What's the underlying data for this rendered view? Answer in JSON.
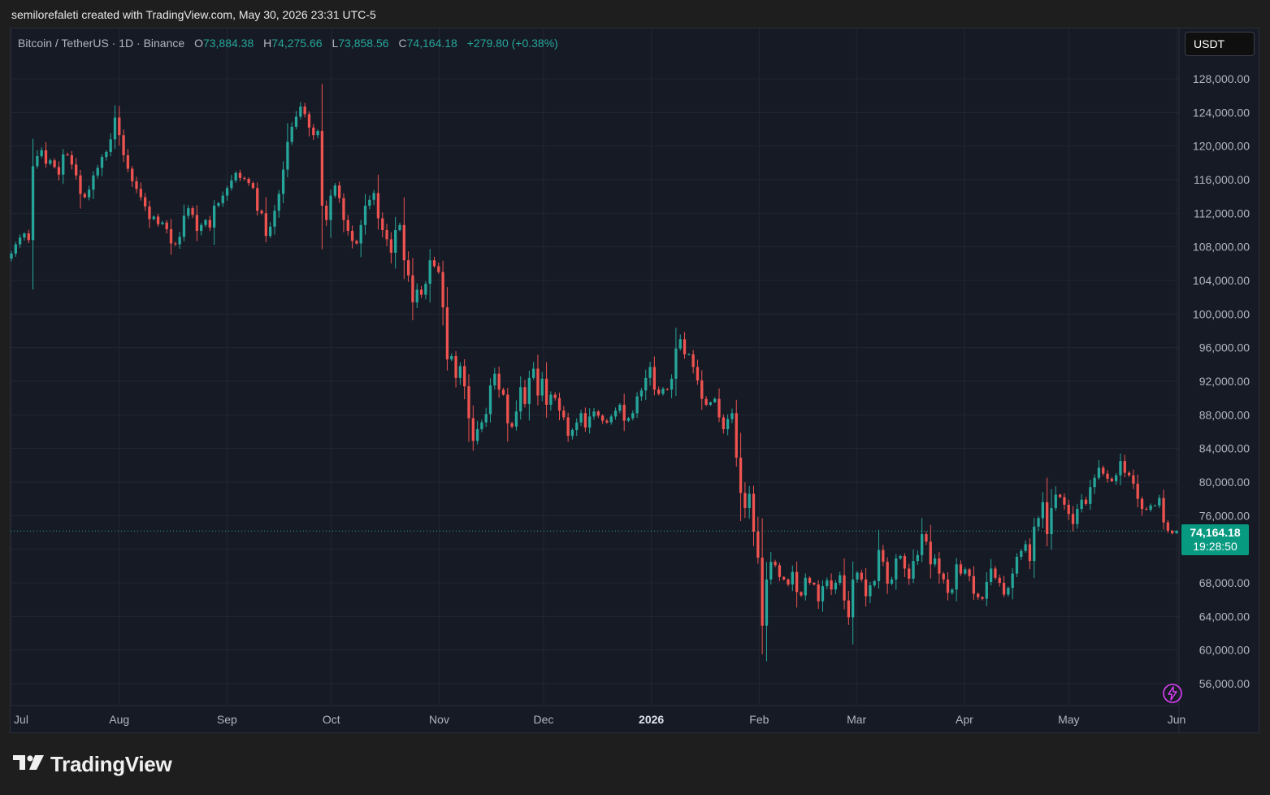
{
  "caption": "semilorefaleti created with TradingView.com, May 30, 2026 23:31 UTC-5",
  "legend": {
    "symbol": "Bitcoin / TetherUS · 1D · Binance",
    "open_label": "O",
    "open": "73,884.38",
    "high_label": "H",
    "high": "74,275.66",
    "low_label": "L",
    "low": "73,858.56",
    "close_label": "C",
    "close": "74,164.18",
    "change": "+279.80 (+0.38%)"
  },
  "currency": "USDT",
  "price_tag": {
    "price": "74,164.18",
    "countdown": "19:28:50"
  },
  "logo_text": "TradingView",
  "colors": {
    "up": "#26a69a",
    "down": "#ef5350",
    "background": "#161a25",
    "grid": "#232734",
    "axis_text": "#b2b5be",
    "price_tag": "#089981"
  },
  "icons": {
    "logo": "tradingview-logo-icon",
    "indicator": "lightning-icon"
  },
  "chart_data": {
    "type": "candlestick",
    "ylim": [
      52000,
      130000
    ],
    "y_ticks": [
      "128,000.00",
      "124,000.00",
      "120,000.00",
      "116,000.00",
      "112,000.00",
      "108,000.00",
      "104,000.00",
      "100,000.00",
      "96,000.00",
      "92,000.00",
      "88,000.00",
      "84,000.00",
      "80,000.00",
      "76,000.00",
      "68,000.00",
      "64,000.00",
      "60,000.00",
      "56,000.00"
    ],
    "x_ticks": [
      "Jul",
      "Aug",
      "Sep",
      "Oct",
      "Nov",
      "Dec",
      "2026",
      "Feb",
      "Mar",
      "Apr",
      "May",
      "Jun"
    ],
    "last_price": 74164.18,
    "grid": true,
    "series_close": [
      107200,
      108300,
      109100,
      109600,
      108800,
      117600,
      118800,
      119500,
      117900,
      118300,
      117500,
      116600,
      119000,
      118900,
      117800,
      116500,
      114300,
      113900,
      114800,
      116500,
      117400,
      118700,
      119300,
      120800,
      123400,
      121300,
      118900,
      117300,
      115800,
      114900,
      113900,
      112800,
      111300,
      111600,
      110700,
      110900,
      110100,
      108400,
      108300,
      109200,
      111700,
      112600,
      111800,
      109900,
      110600,
      111200,
      110300,
      112900,
      113200,
      114100,
      115000,
      115900,
      116800,
      116200,
      116100,
      115600,
      115000,
      112300,
      112000,
      109300,
      110400,
      112300,
      114300,
      117200,
      120500,
      122300,
      123500,
      124700,
      123800,
      122200,
      121300,
      121800,
      112900,
      111200,
      114100,
      115300,
      113800,
      111200,
      109900,
      108700,
      108400,
      110600,
      112900,
      113600,
      114400,
      111400,
      110000,
      108900,
      107300,
      110000,
      110600,
      106400,
      104600,
      101400,
      102900,
      102300,
      103600,
      106400,
      105700,
      105000,
      100800,
      94600,
      95000,
      92400,
      93800,
      91400,
      87600,
      84900,
      86300,
      87100,
      88100,
      91500,
      92900,
      91000,
      90400,
      87000,
      86600,
      88400,
      91300,
      89300,
      92400,
      93500,
      90300,
      92300,
      89200,
      90400,
      90000,
      88500,
      87700,
      85500,
      86200,
      87100,
      88200,
      86500,
      87800,
      88400,
      87900,
      87300,
      87100,
      87800,
      88500,
      89200,
      87300,
      87600,
      88200,
      90200,
      90900,
      92400,
      93700,
      91000,
      90500,
      91100,
      91000,
      92300,
      95900,
      97000,
      95200,
      95200,
      93700,
      92100,
      89900,
      89200,
      89500,
      89900,
      87700,
      86300,
      87500,
      88200,
      82900,
      78700,
      76900,
      78600,
      74100,
      71000,
      62900,
      68400,
      70500,
      70100,
      68700,
      68400,
      67800,
      69300,
      66900,
      66500,
      68600,
      68000,
      67800,
      65800,
      67600,
      68300,
      67200,
      68000,
      68900,
      65900,
      63900,
      68400,
      69200,
      68400,
      66400,
      67700,
      68200,
      71900,
      70500,
      67900,
      68400,
      70900,
      71200,
      69700,
      68500,
      70600,
      71300,
      73800,
      72900,
      70200,
      70900,
      69100,
      68400,
      66800,
      67200,
      70200,
      69100,
      69600,
      68800,
      66700,
      66300,
      66100,
      68100,
      69700,
      68600,
      68000,
      66600,
      67400,
      69100,
      71100,
      71800,
      72600,
      70600,
      74700,
      75700,
      77600,
      73800,
      76900,
      78500,
      78200,
      77300,
      76200,
      75000,
      76800,
      77900,
      77400,
      79400,
      80500,
      81700,
      81000,
      80400,
      80100,
      80800,
      82500,
      81100,
      80800,
      79800,
      78000,
      76800,
      76700,
      77200,
      77200,
      78100,
      75200,
      74200,
      73900,
      74164
    ]
  }
}
